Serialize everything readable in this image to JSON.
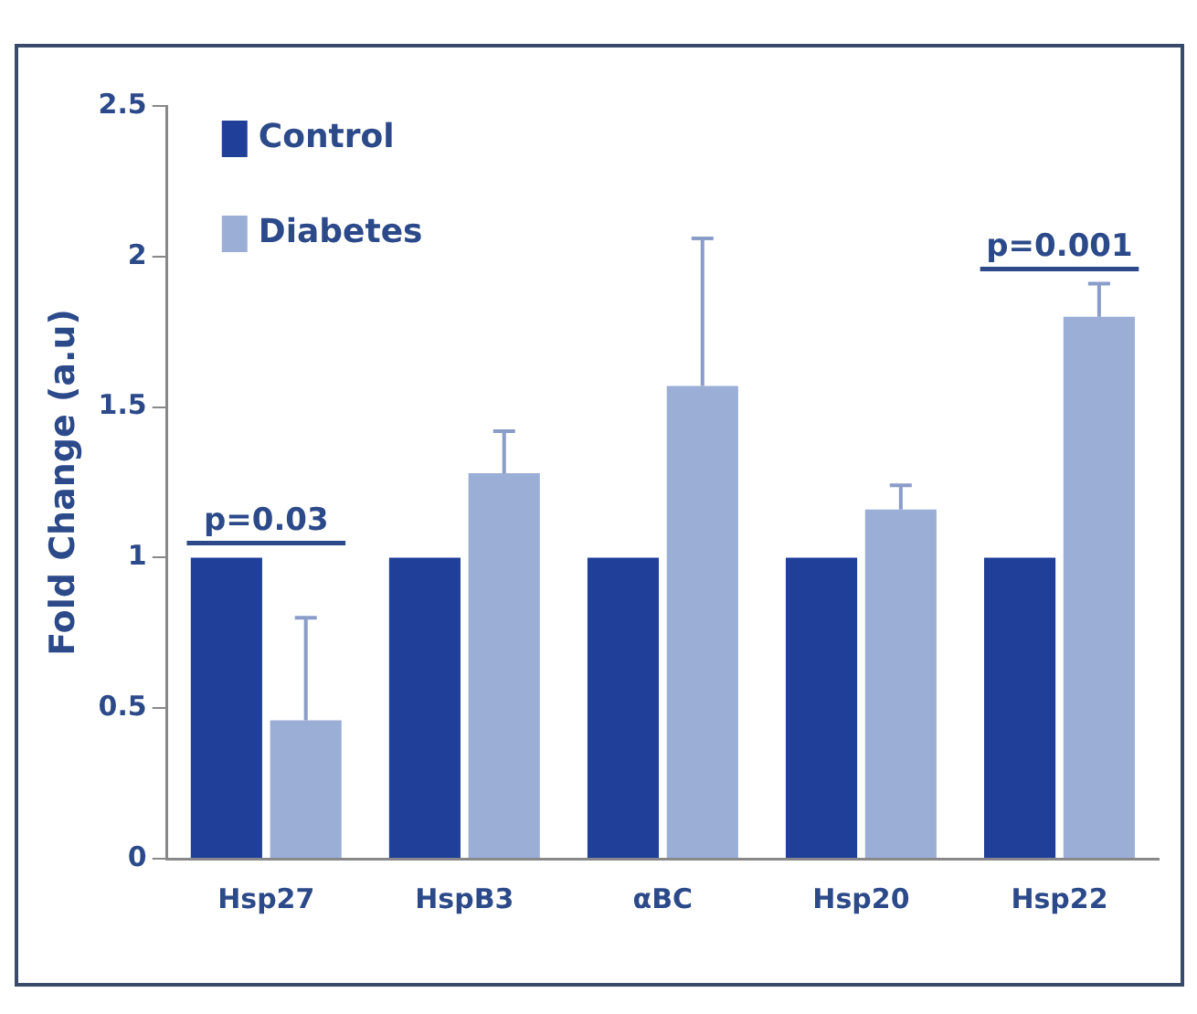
{
  "chart_data": {
    "type": "bar",
    "ylabel": "Fold Change (a.u)",
    "categories": [
      "Hsp27",
      "HspB3",
      "αBC",
      "Hsp20",
      "Hsp22"
    ],
    "series": [
      {
        "name": "Control",
        "color": "#1f3f99",
        "values": [
          1,
          1,
          1,
          1,
          1
        ]
      },
      {
        "name": "Diabetes",
        "color": "#9aaed6",
        "values": [
          0.46,
          1.28,
          1.57,
          1.16,
          1.8
        ],
        "errors": [
          [
            0.46,
            0.8
          ],
          [
            1.28,
            1.42
          ],
          [
            1.57,
            2.06
          ],
          [
            1.16,
            1.24
          ],
          [
            1.8,
            1.91
          ]
        ]
      }
    ],
    "ylim": [
      0,
      2.5
    ],
    "yticks": [
      0,
      0.5,
      1,
      1.5,
      2,
      2.5
    ],
    "grid": false,
    "legend": "top left",
    "annotations": [
      "p=0.03",
      "p=0.001"
    ]
  }
}
